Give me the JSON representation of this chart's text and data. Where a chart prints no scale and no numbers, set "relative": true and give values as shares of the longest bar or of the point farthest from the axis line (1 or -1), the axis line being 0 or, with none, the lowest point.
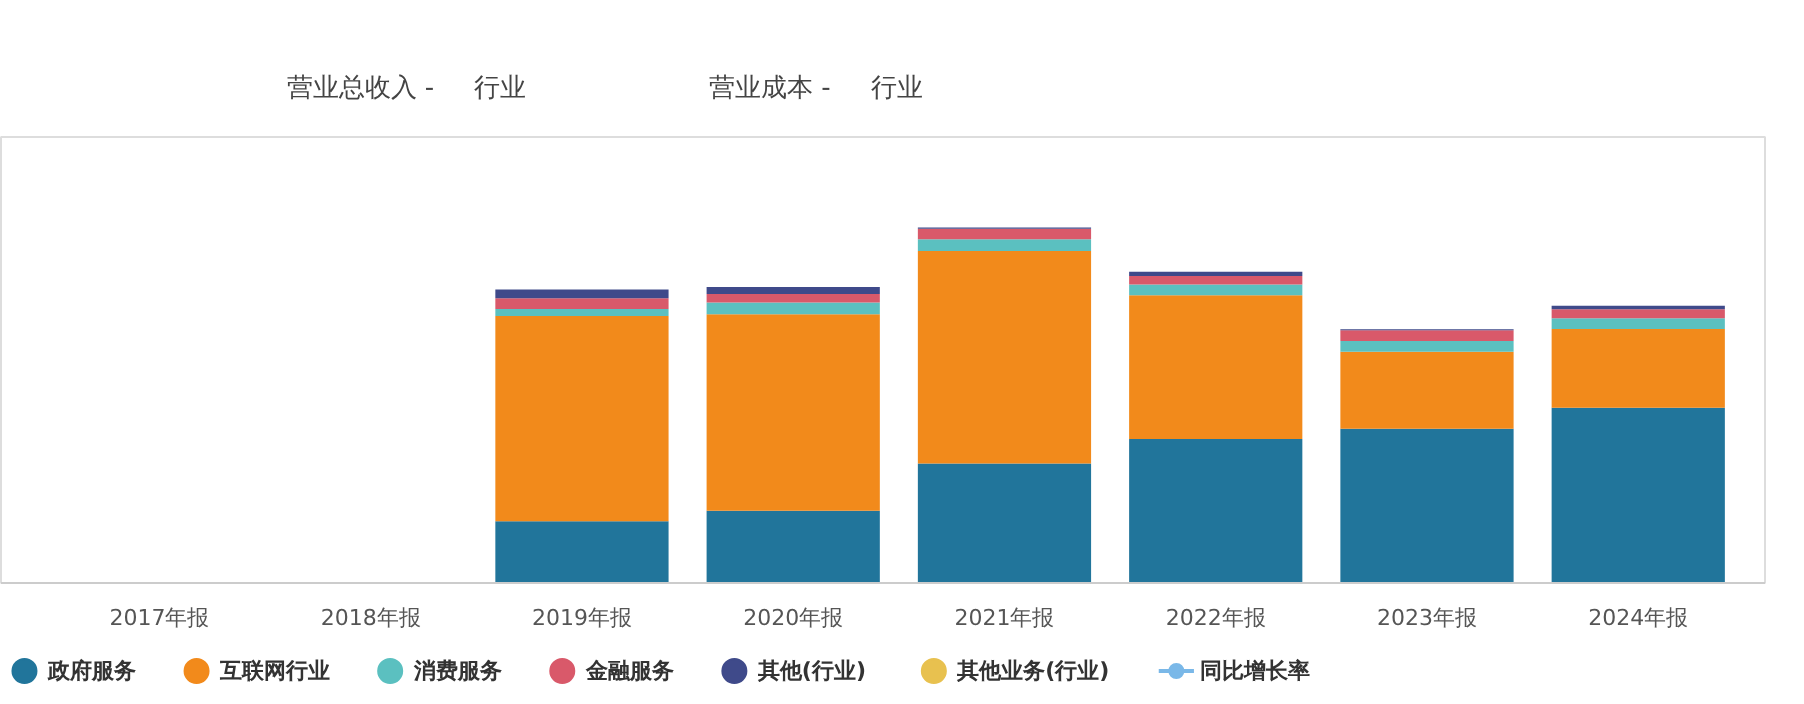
{
  "chart_data": {
    "type": "bar",
    "stacked": true,
    "relative": true,
    "legend": "bottom",
    "marker": "circle",
    "annotations": [
      "营业总收入 -",
      "行业",
      "营业成本 -",
      "行业"
    ],
    "categories": [
      "2017年报",
      "2018年报",
      "2019年报",
      "2020年报",
      "2021年报",
      "2022年报",
      "2023年报",
      "2024年报"
    ],
    "series": [
      {
        "name": "政府服务",
        "color": "#21759b",
        "values": [
          null,
          null,
          0.174,
          0.203,
          0.336,
          0.405,
          0.434,
          0.493
        ]
      },
      {
        "name": "互联网行业",
        "color": "#f28a1b",
        "values": [
          null,
          null,
          0.577,
          0.553,
          0.598,
          0.405,
          0.217,
          0.222
        ]
      },
      {
        "name": "消费服务",
        "color": "#5bc0c0",
        "values": [
          null,
          null,
          0.02,
          0.033,
          0.033,
          0.03,
          0.03,
          0.03
        ]
      },
      {
        "name": "金融服务",
        "color": "#d9596a",
        "values": [
          null,
          null,
          0.03,
          0.024,
          0.03,
          0.024,
          0.03,
          0.025
        ]
      },
      {
        "name": "其他(行业)",
        "color": "#3f4a8a",
        "values": [
          null,
          null,
          0.025,
          0.02,
          0.003,
          0.012,
          0.003,
          0.01
        ]
      },
      {
        "name": "其他业务(行业)",
        "color": "#e8c14f",
        "values": [
          null,
          null,
          null,
          null,
          null,
          null,
          null,
          null
        ]
      },
      {
        "name": "同比增长率",
        "color": "#7ab8e8",
        "type": "line",
        "values": [
          null,
          null,
          null,
          null,
          null,
          null,
          null,
          null
        ]
      }
    ]
  }
}
